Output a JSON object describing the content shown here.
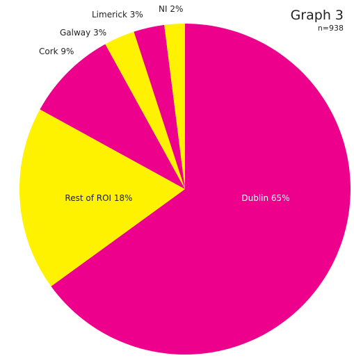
{
  "chart_data": {
    "type": "pie",
    "title": "Graph 3",
    "subtitle": "n=938",
    "start_angle_deg": 0,
    "direction": "clockwise",
    "colors": {
      "magenta": "#EC008C",
      "yellow": "#FFF200"
    },
    "slices": [
      {
        "label": "Dublin 65%",
        "name": "Dublin",
        "value": 65,
        "color": "#EC008C",
        "label_color": "#ffffff",
        "label_placement": "inside"
      },
      {
        "label": "Rest of ROI 18%",
        "name": "Rest of ROI",
        "value": 18,
        "color": "#FFF200",
        "label_color": "#222222",
        "label_placement": "inside"
      },
      {
        "label": "Cork 9%",
        "name": "Cork",
        "value": 9,
        "color": "#EC008C",
        "label_color": "#222222",
        "label_placement": "outside"
      },
      {
        "label": "Galway 3%",
        "name": "Galway",
        "value": 3,
        "color": "#FFF200",
        "label_color": "#222222",
        "label_placement": "outside"
      },
      {
        "label": "Limerick 3%",
        "name": "Limerick",
        "value": 3,
        "color": "#EC008C",
        "label_color": "#222222",
        "label_placement": "outside"
      },
      {
        "label": "NI 2%",
        "name": "NI",
        "value": 2,
        "color": "#FFF200",
        "label_color": "#222222",
        "label_placement": "outside"
      }
    ]
  }
}
